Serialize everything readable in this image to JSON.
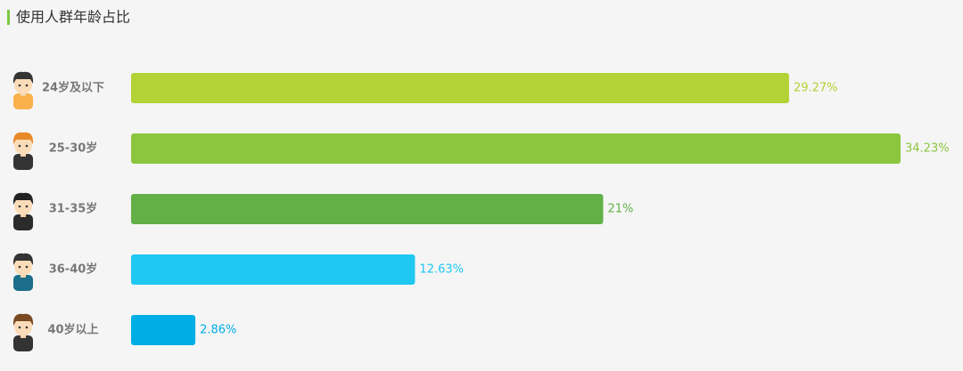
{
  "chart_data": {
    "type": "bar",
    "orientation": "horizontal",
    "title": "使用人群年龄占比",
    "categories": [
      "24岁及以下",
      "25-30岁",
      "31-35岁",
      "36-40岁",
      "40岁以上"
    ],
    "values": [
      29.27,
      34.23,
      21,
      12.63,
      2.86
    ],
    "value_labels": [
      "29.27%",
      "34.23%",
      "21%",
      "12.63%",
      "2.86%"
    ],
    "colors": [
      "#b2d235",
      "#8cc63f",
      "#62b046",
      "#1fc8f1",
      "#00aee6"
    ]
  }
}
